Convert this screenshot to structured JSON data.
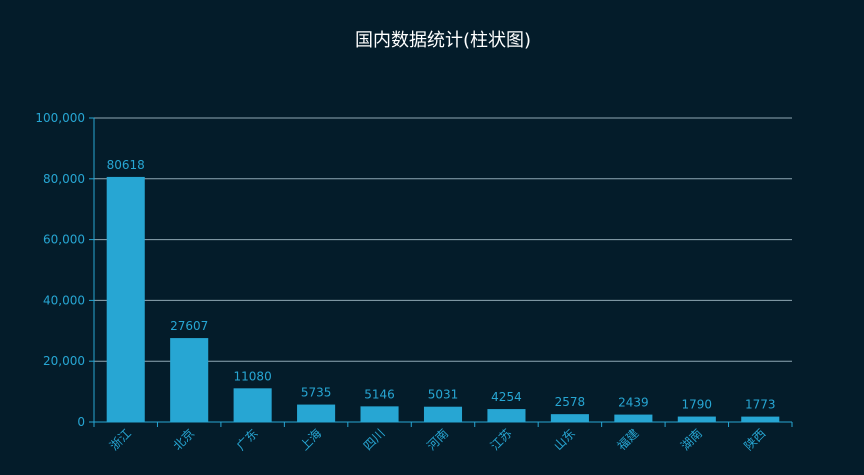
{
  "chart_data": {
    "type": "bar",
    "title": "国内数据统计(柱状图)",
    "categories": [
      "浙江",
      "北京",
      "广东",
      "上海",
      "四川",
      "河南",
      "江苏",
      "山东",
      "福建",
      "湖南",
      "陕西"
    ],
    "values": [
      80618,
      27607,
      11080,
      5735,
      5146,
      5031,
      4254,
      2578,
      2439,
      1790,
      1773
    ],
    "ylim": [
      0,
      100000
    ],
    "yticks": [
      0,
      20000,
      40000,
      60000,
      80000,
      100000
    ],
    "ytick_labels": [
      "0",
      "20,000",
      "40,000",
      "60,000",
      "80,000",
      "100,000"
    ],
    "grid": true,
    "xlabel": "",
    "ylabel": "",
    "colors": {
      "background": "#041c2a",
      "bar": "#27a6d3",
      "axis_text": "#27a6d3",
      "grid": "#8fa8b4",
      "title": "#ffffff"
    }
  }
}
